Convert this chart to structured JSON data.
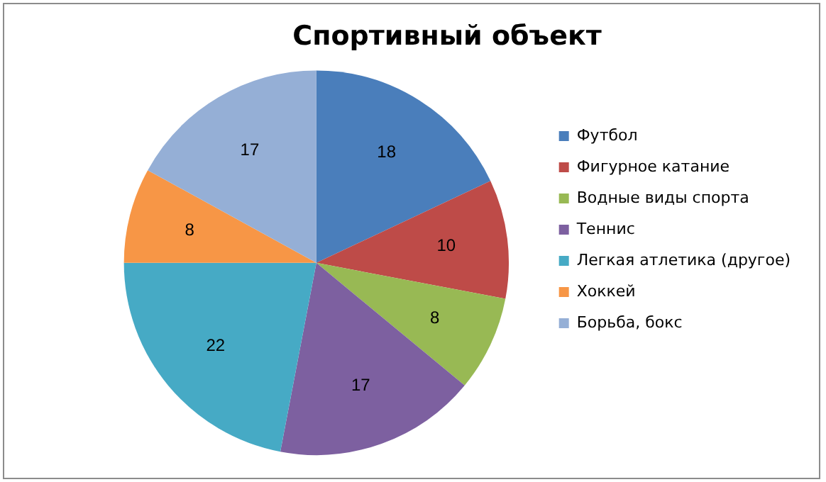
{
  "chart_data": {
    "type": "pie",
    "title": "Спортивный объект",
    "categories": [
      "Футбол",
      "Фигурное катание",
      "Водные виды спорта",
      "Теннис",
      "Легкая атлетика (другое)",
      "Хоккей",
      "Борьба, бокс"
    ],
    "values": [
      18,
      10,
      8,
      17,
      22,
      8,
      17
    ],
    "colors": [
      "#4a7ebb",
      "#be4b48",
      "#98b954",
      "#7d60a0",
      "#46aac5",
      "#f79646",
      "#95afd6"
    ],
    "data_labels": true,
    "legend": "right"
  }
}
